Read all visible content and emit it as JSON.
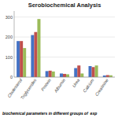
{
  "chart_data": {
    "type": "bar",
    "title": "Serobiochemical Analysis",
    "caption": "biochemical parameters in different groups of  exp",
    "categories": [
      "Cholesterol",
      "Triglycerides",
      "Protein",
      "Albumin",
      "Urea",
      "Calcium",
      "Creatinine"
    ],
    "series": [
      {
        "color": "#4472c4",
        "values": [
          180,
          210,
          30,
          18,
          45,
          55,
          8
        ]
      },
      {
        "color": "#c0504d",
        "values": [
          180,
          225,
          32,
          16,
          58,
          50,
          10
        ]
      },
      {
        "color": "#9bbb59",
        "values": [
          145,
          290,
          28,
          14,
          18,
          58,
          9
        ]
      }
    ],
    "ylim": [
      0,
      330
    ],
    "yticks": [
      0,
      100,
      200,
      300
    ],
    "grid": true
  }
}
